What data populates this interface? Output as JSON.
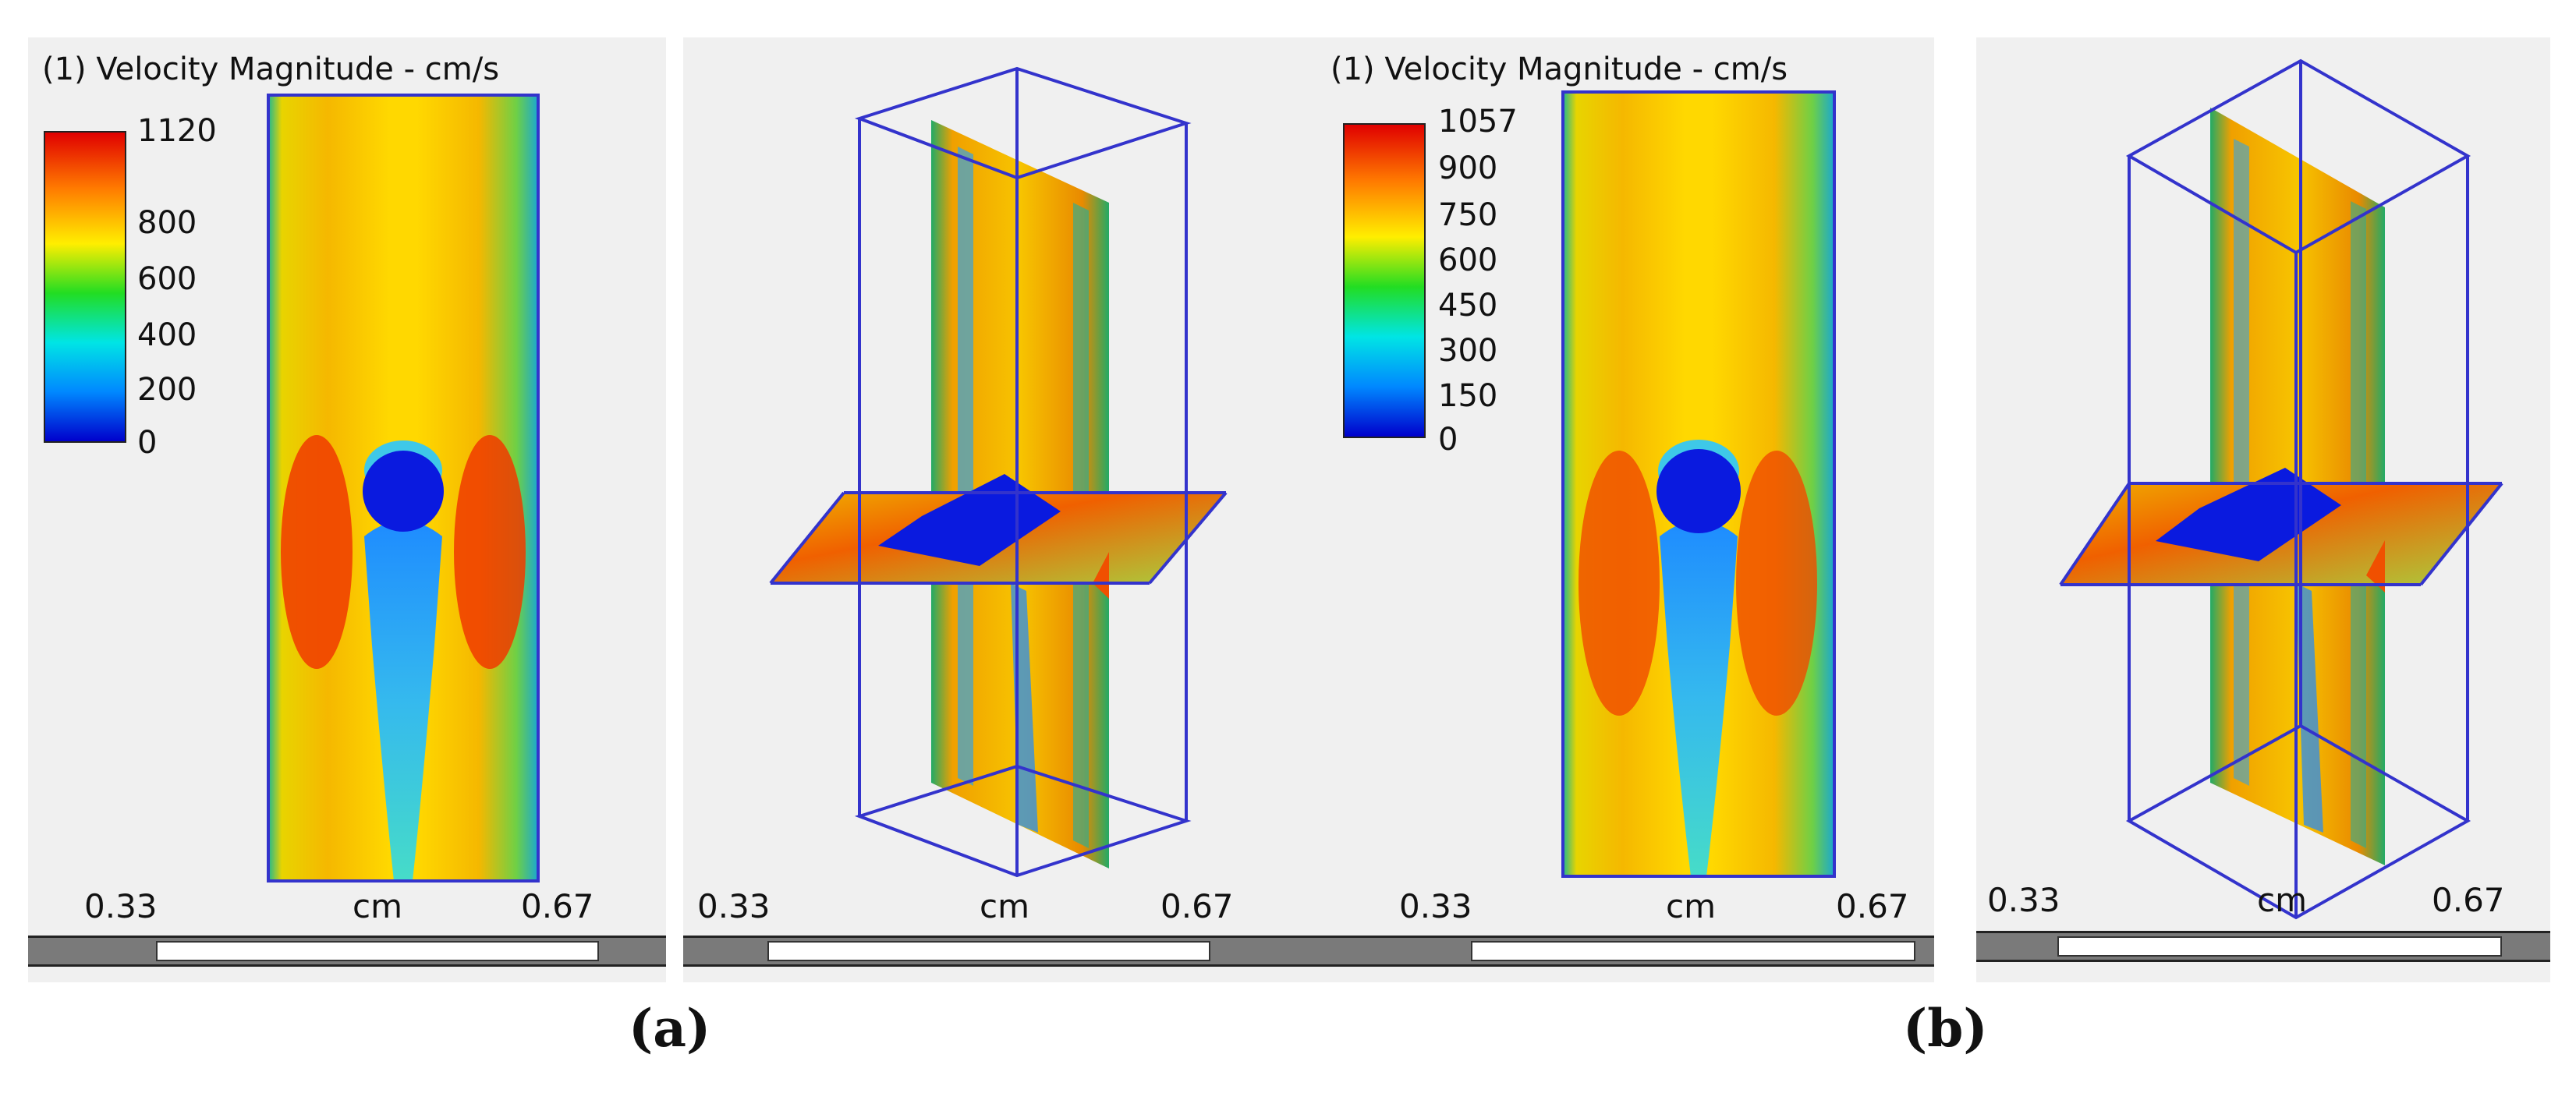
{
  "figure": {
    "captions": [
      "(a)",
      "(b)"
    ],
    "panel_a_2d": {
      "title": "(1) Velocity Magnitude - cm/s",
      "colorbar_ticks": [
        "1120",
        "800",
        "600",
        "400",
        "200",
        "0"
      ],
      "axis_min": "0.33",
      "axis_unit": "cm",
      "axis_max": "0.67"
    },
    "panel_a_3d": {
      "axis_min": "0.33",
      "axis_unit": "cm",
      "axis_max": "0.67"
    },
    "panel_b_2d": {
      "title": "(1) Velocity Magnitude - cm/s",
      "colorbar_ticks": [
        "1057",
        "900",
        "750",
        "600",
        "450",
        "300",
        "150",
        "0"
      ],
      "axis_min": "0.33",
      "axis_unit": "cm",
      "axis_max": "0.67"
    },
    "panel_b_3d": {
      "axis_min": "0.33",
      "axis_unit": "cm",
      "axis_max": "0.67"
    },
    "colors": {
      "colormap": [
        "#ff0000",
        "#ff8a00",
        "#ffee00",
        "#22dd22",
        "#00e5e5",
        "#0088ff",
        "#0000dd"
      ],
      "wireframe": "#3333cc",
      "obstacle": "#0a1adf"
    }
  }
}
